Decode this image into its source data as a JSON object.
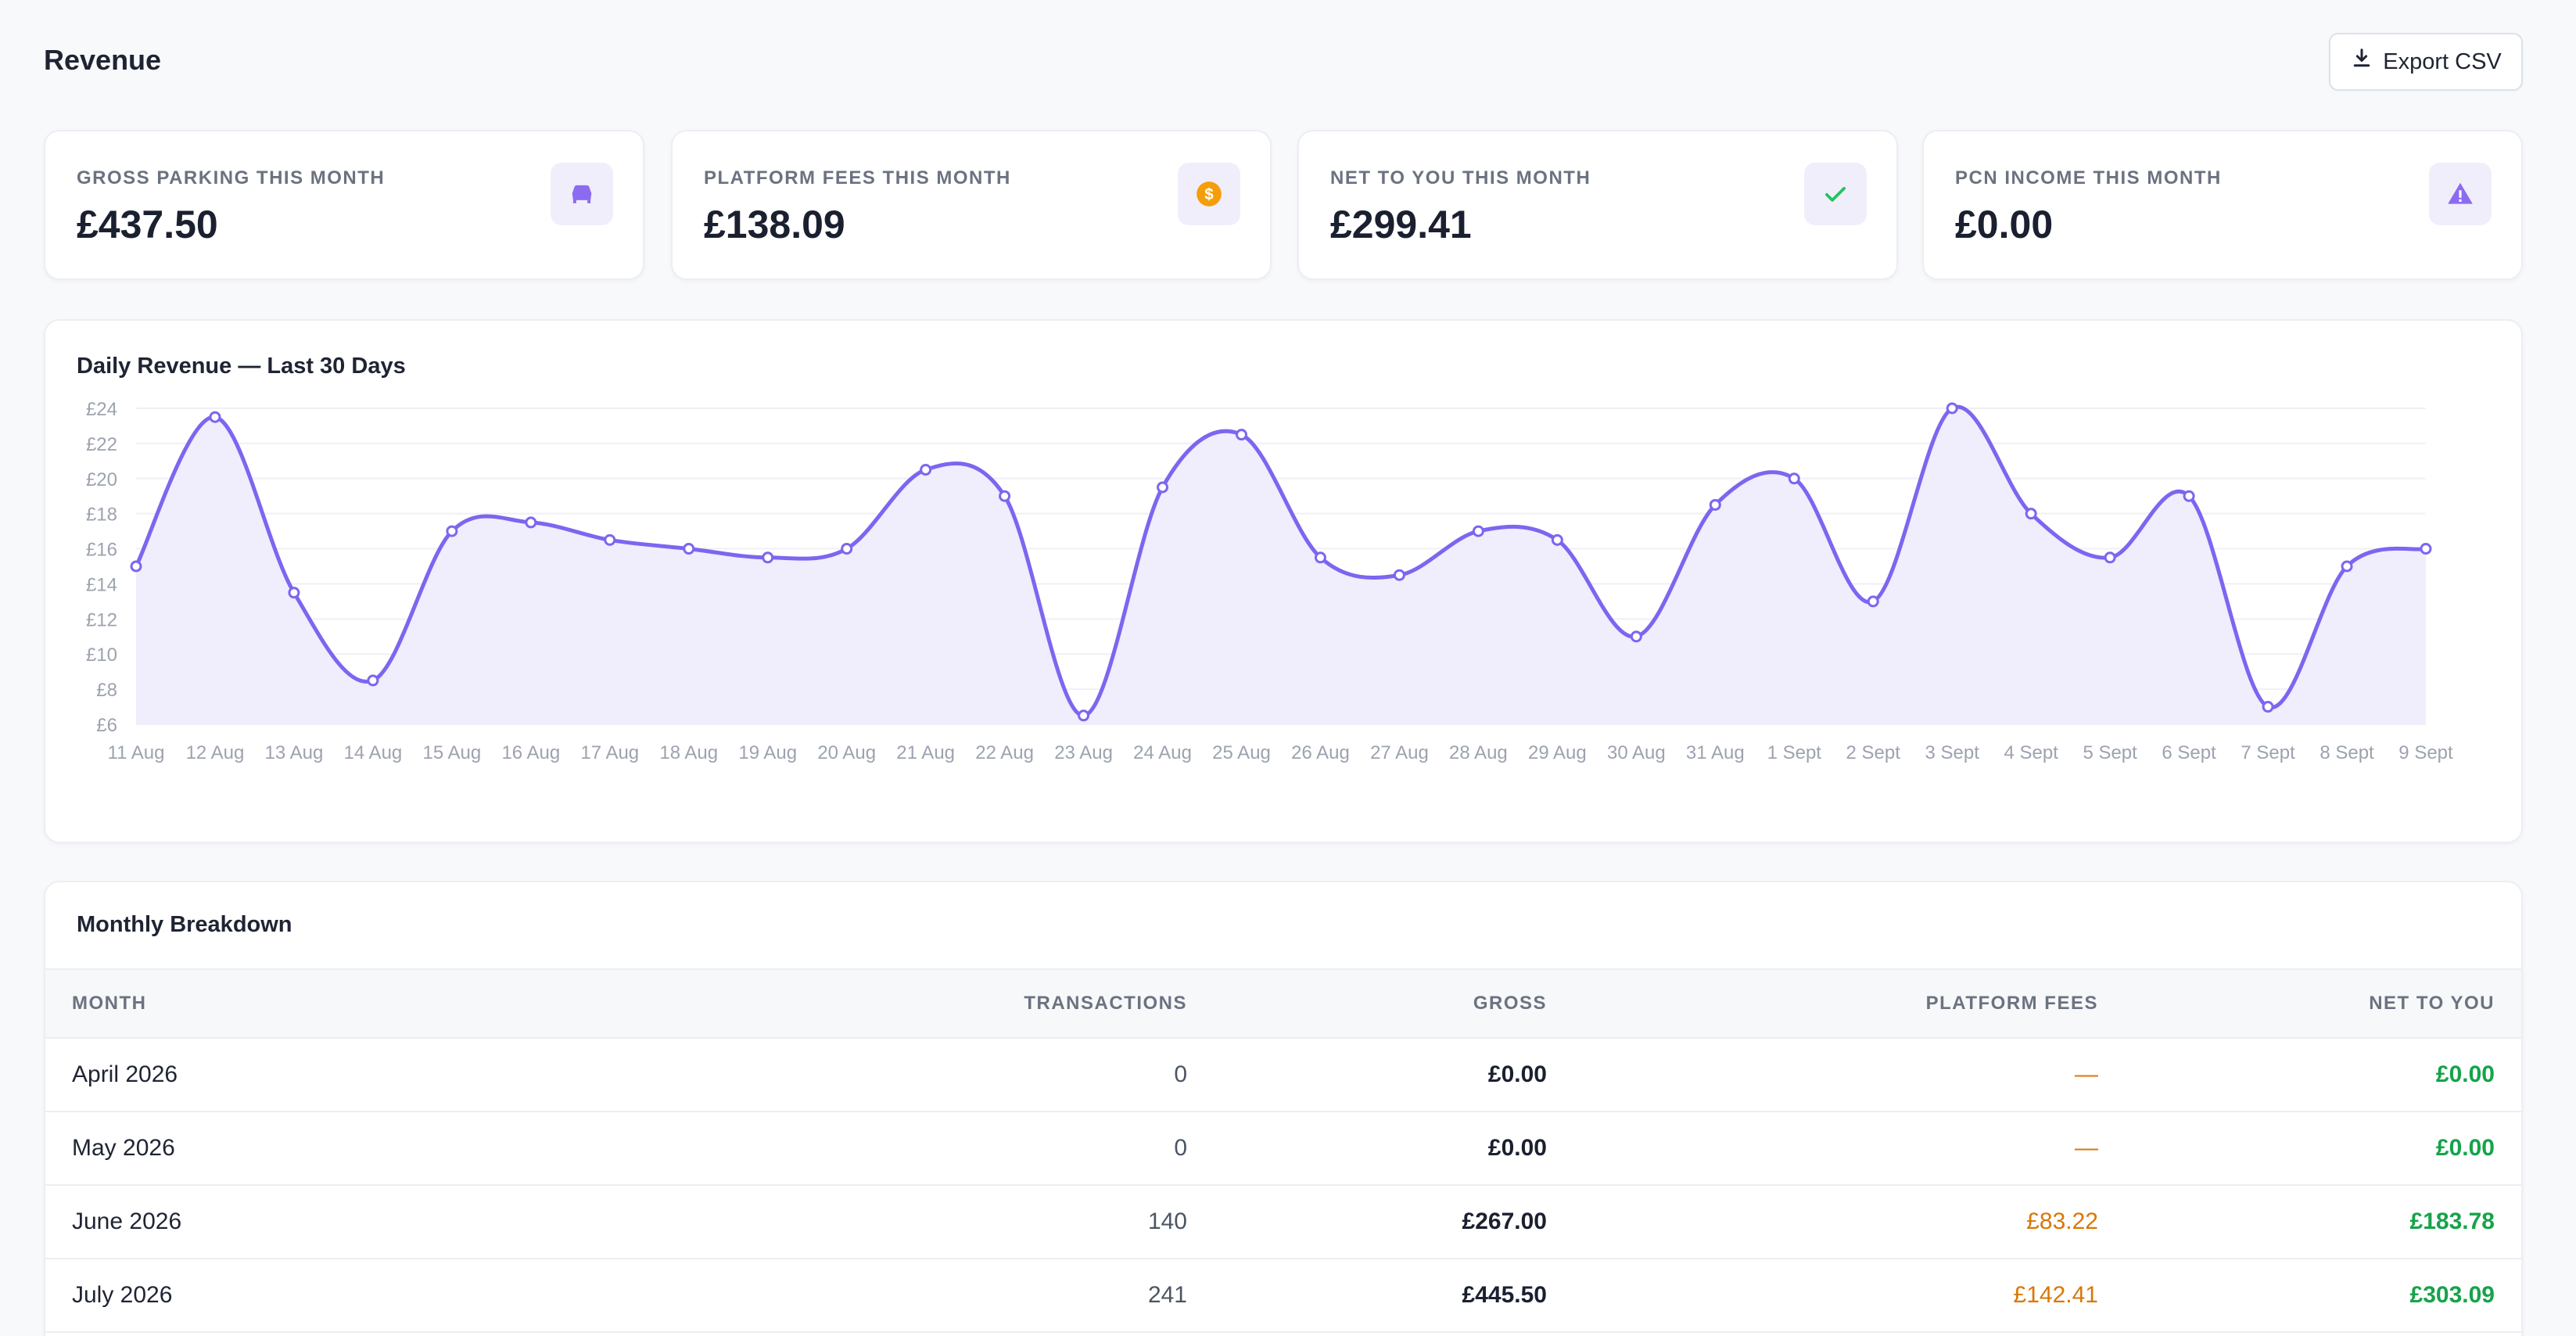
{
  "header": {
    "title": "Revenue",
    "export_label": "Export CSV",
    "export_icon": "download-icon"
  },
  "stats": [
    {
      "label": "GROSS PARKING THIS MONTH",
      "value": "£437.50",
      "icon": "car-icon",
      "icon_color": "#8b6cf0"
    },
    {
      "label": "PLATFORM FEES THIS MONTH",
      "value": "£138.09",
      "icon": "coin-icon",
      "icon_color": "#f59e0b"
    },
    {
      "label": "NET TO YOU THIS MONTH",
      "value": "£299.41",
      "icon": "check-icon",
      "icon_color": "#22c55e"
    },
    {
      "label": "PCN INCOME THIS MONTH",
      "value": "£0.00",
      "icon": "warning-icon",
      "icon_color": "#8b6cf0"
    }
  ],
  "chart": {
    "title": "Daily Revenue — Last 30 Days"
  },
  "chart_data": {
    "type": "area",
    "title": "Daily Revenue — Last 30 Days",
    "xlabel": "",
    "ylabel": "",
    "x": [
      "11 Aug",
      "12 Aug",
      "13 Aug",
      "14 Aug",
      "15 Aug",
      "16 Aug",
      "17 Aug",
      "18 Aug",
      "19 Aug",
      "20 Aug",
      "21 Aug",
      "22 Aug",
      "23 Aug",
      "24 Aug",
      "25 Aug",
      "26 Aug",
      "27 Aug",
      "28 Aug",
      "29 Aug",
      "30 Aug",
      "31 Aug",
      "1 Sept",
      "2 Sept",
      "3 Sept",
      "4 Sept",
      "5 Sept",
      "6 Sept",
      "7 Sept",
      "8 Sept",
      "9 Sept"
    ],
    "series": [
      {
        "values": [
          15,
          23.5,
          13.5,
          8.5,
          17,
          17.5,
          16.5,
          16,
          15.5,
          16,
          20.5,
          19,
          6.5,
          19.5,
          22.5,
          15.5,
          14.5,
          17,
          16.5,
          11,
          18.5,
          20,
          13,
          24,
          18,
          15.5,
          19,
          7,
          15,
          16
        ]
      }
    ],
    "ylim": [
      6,
      24
    ],
    "yticks": [
      "£6",
      "£8",
      "£10",
      "£12",
      "£14",
      "£16",
      "£18",
      "£20",
      "£22",
      "£24"
    ],
    "ytick_values": [
      6,
      8,
      10,
      12,
      14,
      16,
      18,
      20,
      22,
      24
    ],
    "grid": true,
    "line_color": "#7c66f0",
    "fill_color": "#f0edfd"
  },
  "table": {
    "title": "Monthly Breakdown",
    "columns": [
      "MONTH",
      "TRANSACTIONS",
      "GROSS",
      "PLATFORM FEES",
      "NET TO YOU"
    ],
    "rows": [
      {
        "month": "April 2026",
        "transactions": "0",
        "gross": "£0.00",
        "fees": "—",
        "net": "£0.00"
      },
      {
        "month": "May 2026",
        "transactions": "0",
        "gross": "£0.00",
        "fees": "—",
        "net": "£0.00"
      },
      {
        "month": "June 2026",
        "transactions": "140",
        "gross": "£267.00",
        "fees": "£83.22",
        "net": "£183.78"
      },
      {
        "month": "July 2026",
        "transactions": "241",
        "gross": "£445.50",
        "fees": "£142.41",
        "net": "£303.09"
      }
    ]
  }
}
